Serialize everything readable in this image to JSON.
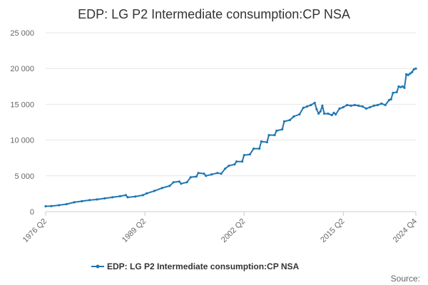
{
  "chart_data": {
    "type": "line",
    "title": "EDP: LG P2 Intermediate consumption:CP NSA",
    "xlabel": "",
    "ylabel": "",
    "x_tick_labels": [
      "1976 Q2",
      "1989 Q2",
      "2002 Q2",
      "2015 Q2",
      "2024 Q4"
    ],
    "x_tick_years": [
      1976.25,
      1989.25,
      2002.25,
      2015.25,
      2024.75
    ],
    "xlim": [
      1976.25,
      2024.75
    ],
    "y_tick_labels": [
      "0",
      "5 000",
      "10 000",
      "15 000",
      "20 000",
      "25 000"
    ],
    "y_tick_values": [
      0,
      5000,
      10000,
      15000,
      20000,
      25000
    ],
    "ylim": [
      0,
      25000
    ],
    "grid": true,
    "legend_position": "bottom",
    "series": [
      {
        "name": "EDP: LG P2 Intermediate consumption:CP NSA",
        "color": "#1f77b4",
        "points": [
          [
            1976.25,
            750
          ],
          [
            1977.0,
            780
          ],
          [
            1978.0,
            900
          ],
          [
            1979.0,
            1050
          ],
          [
            1980.0,
            1300
          ],
          [
            1981.0,
            1450
          ],
          [
            1982.0,
            1600
          ],
          [
            1983.0,
            1700
          ],
          [
            1984.0,
            1850
          ],
          [
            1985.0,
            2000
          ],
          [
            1986.0,
            2150
          ],
          [
            1986.75,
            2300
          ],
          [
            1987.0,
            2000
          ],
          [
            1988.0,
            2100
          ],
          [
            1989.0,
            2300
          ],
          [
            1989.5,
            2550
          ],
          [
            1990.5,
            2900
          ],
          [
            1991.5,
            3300
          ],
          [
            1992.5,
            3600
          ],
          [
            1993.0,
            4100
          ],
          [
            1993.75,
            4200
          ],
          [
            1994.0,
            3900
          ],
          [
            1994.75,
            4100
          ],
          [
            1995.25,
            4800
          ],
          [
            1996.0,
            4900
          ],
          [
            1996.25,
            5400
          ],
          [
            1997.0,
            5300
          ],
          [
            1997.25,
            5000
          ],
          [
            1998.0,
            5200
          ],
          [
            1998.75,
            5400
          ],
          [
            1999.25,
            5300
          ],
          [
            1999.75,
            6000
          ],
          [
            2000.25,
            6400
          ],
          [
            2001.0,
            6600
          ],
          [
            2001.25,
            7000
          ],
          [
            2002.0,
            7000
          ],
          [
            2002.25,
            7900
          ],
          [
            2003.0,
            8000
          ],
          [
            2003.5,
            8800
          ],
          [
            2004.25,
            8800
          ],
          [
            2004.5,
            9800
          ],
          [
            2005.25,
            9700
          ],
          [
            2005.5,
            10700
          ],
          [
            2006.25,
            10700
          ],
          [
            2006.5,
            11300
          ],
          [
            2007.25,
            11500
          ],
          [
            2007.5,
            12600
          ],
          [
            2008.25,
            12800
          ],
          [
            2008.75,
            13300
          ],
          [
            2009.5,
            13600
          ],
          [
            2010.0,
            14500
          ],
          [
            2010.5,
            14700
          ],
          [
            2011.0,
            14900
          ],
          [
            2011.5,
            15200
          ],
          [
            2011.75,
            14300
          ],
          [
            2012.0,
            13700
          ],
          [
            2012.25,
            14000
          ],
          [
            2012.5,
            14800
          ],
          [
            2012.75,
            13700
          ],
          [
            2013.25,
            13700
          ],
          [
            2013.75,
            13500
          ],
          [
            2014.0,
            13800
          ],
          [
            2014.25,
            13600
          ],
          [
            2014.75,
            14400
          ],
          [
            2015.25,
            14600
          ],
          [
            2015.75,
            14900
          ],
          [
            2016.25,
            14800
          ],
          [
            2016.75,
            14900
          ],
          [
            2017.25,
            14800
          ],
          [
            2017.75,
            14700
          ],
          [
            2018.25,
            14400
          ],
          [
            2018.75,
            14600
          ],
          [
            2019.25,
            14800
          ],
          [
            2019.75,
            14900
          ],
          [
            2020.25,
            15100
          ],
          [
            2020.75,
            14900
          ],
          [
            2021.25,
            15600
          ],
          [
            2021.5,
            15700
          ],
          [
            2021.75,
            16600
          ],
          [
            2022.25,
            16700
          ],
          [
            2022.5,
            17500
          ],
          [
            2022.75,
            17400
          ],
          [
            2023.0,
            17500
          ],
          [
            2023.25,
            17300
          ],
          [
            2023.5,
            19200
          ],
          [
            2023.75,
            19100
          ],
          [
            2024.0,
            19300
          ],
          [
            2024.25,
            19500
          ],
          [
            2024.5,
            19900
          ],
          [
            2024.75,
            20000
          ]
        ]
      }
    ],
    "source_label": "Source:"
  }
}
